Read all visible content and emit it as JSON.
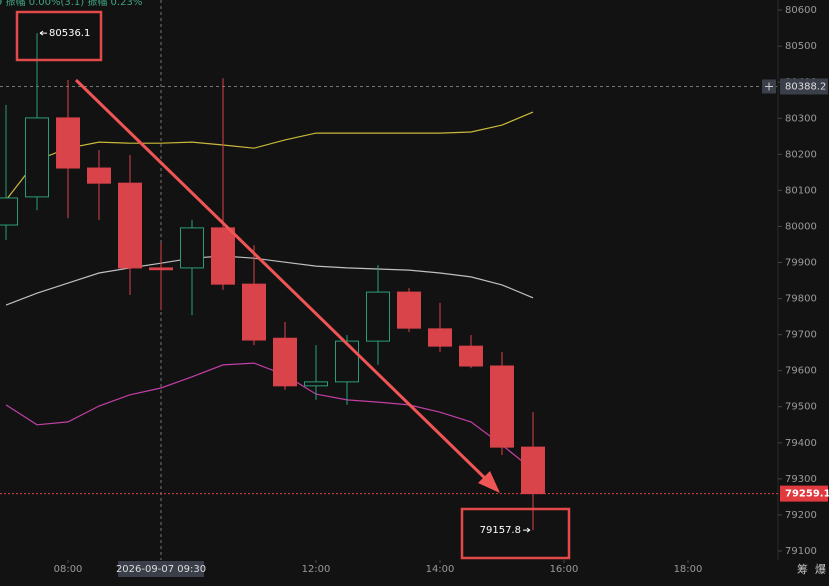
{
  "chart_data": {
    "type": "candlestick",
    "header": "9 振幅 0.00%(3.1) 振幅 0.23%",
    "x": [
      7,
      7.5,
      8,
      8.5,
      9,
      9.5,
      10,
      10.5,
      11,
      11.5,
      12,
      12.5,
      13,
      13.5,
      14,
      14.5,
      15,
      15.5
    ],
    "open": [
      80004,
      80082,
      80301,
      80162,
      80120,
      79885,
      79885,
      79996,
      79840,
      79690,
      79558,
      79569,
      79682,
      79818,
      79716,
      79668,
      79613,
      79388
    ],
    "high": [
      80337,
      80536.1,
      80406,
      80212,
      80198,
      79954,
      80018,
      80411,
      79948,
      79735,
      79671,
      79699,
      79893,
      79829,
      79788,
      79699,
      79652,
      79485
    ],
    "low": [
      79962,
      80045,
      80023,
      80018,
      79810,
      79768,
      79754,
      79824,
      79671,
      79547,
      79519,
      79505,
      79616,
      79707,
      79652,
      79607,
      79366,
      79157.8
    ],
    "close": [
      80079,
      80301,
      80162,
      80120,
      79885,
      79880,
      79996,
      79840,
      79685,
      79558,
      79569,
      79682,
      79818,
      79718,
      79668,
      79613,
      79388,
      79259.1
    ],
    "up_color": "#2a9d7c",
    "down_color": "#d9434a",
    "lines": [
      {
        "color": "#c9b93a",
        "values": [
          80073,
          80184,
          80217,
          80234,
          80231,
          80231,
          80234,
          80226,
          80217,
          80240,
          80259,
          80259,
          80259,
          80259,
          80259,
          80262,
          80281,
          80317
        ]
      },
      {
        "color": "#bfbfbf",
        "values": [
          79782,
          79815,
          79843,
          79871,
          79885,
          79898,
          79912,
          79918,
          79912,
          79901,
          79890,
          79885,
          79882,
          79879,
          79871,
          79860,
          79838,
          79802
        ]
      },
      {
        "color": "#c23fa6",
        "values": [
          79505,
          79450,
          79458,
          79502,
          79533,
          79552,
          79583,
          79616,
          79621,
          79588,
          79535,
          79519,
          79513,
          79505,
          79485,
          79458,
          79394,
          79325
        ]
      }
    ],
    "xlim": [
      6.903,
      19.452
    ],
    "xticks": [
      {
        "value": 8,
        "label": "08:00"
      },
      {
        "value": 12,
        "label": "12:00"
      },
      {
        "value": 14,
        "label": "14:00"
      },
      {
        "value": 16,
        "label": "16:00"
      },
      {
        "value": 18,
        "label": "18:00"
      }
    ],
    "ylim": [
      79075,
      80628
    ],
    "yticks": [
      80600,
      80500,
      80400,
      80300,
      80200,
      80100,
      80000,
      79900,
      79800,
      79700,
      79600,
      79500,
      79400,
      79300,
      79200,
      79100
    ],
    "crosshair": {
      "price": 80388.2,
      "time": "2026-09-07 09:30",
      "x": 9.5
    },
    "buttons": [
      "筹",
      "爆"
    ]
  }
}
